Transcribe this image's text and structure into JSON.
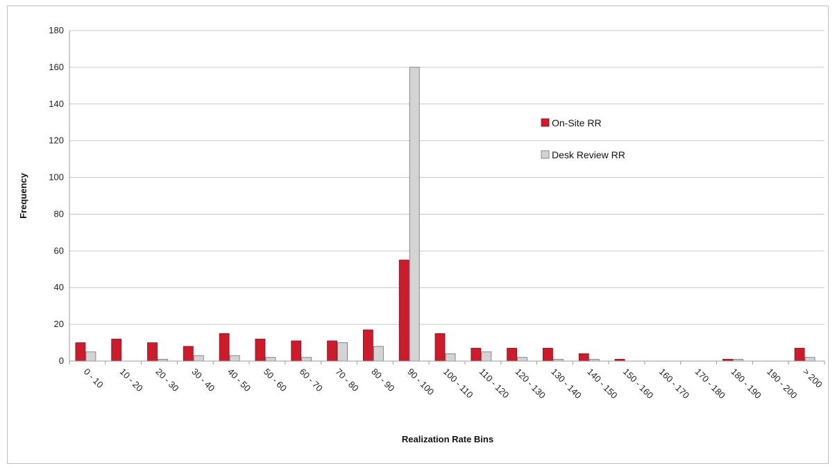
{
  "chart_data": {
    "type": "bar",
    "xlabel": "Realization Rate Bins",
    "ylabel": "Frequency",
    "ylim": [
      0,
      180
    ],
    "yticks": [
      0,
      20,
      40,
      60,
      80,
      100,
      120,
      140,
      160,
      180
    ],
    "grid": true,
    "legend_position": "right",
    "categories": [
      "0 - 10",
      "10 - 20",
      "20 - 30",
      "30 - 40",
      "40 - 50",
      "50 - 60",
      "60 - 70",
      "70 - 80",
      "80 - 90",
      "90 - 100",
      "100 - 110",
      "110 - 120",
      "120 - 130",
      "130 - 140",
      "140 - 150",
      "150 - 160",
      "160 - 170",
      "170 - 180",
      "180 - 190",
      "190 - 200",
      "> 200"
    ],
    "series": [
      {
        "name": "On-Site RR",
        "color": "#cc1b2b",
        "values": [
          10,
          12,
          10,
          8,
          15,
          12,
          11,
          11,
          17,
          55,
          15,
          7,
          7,
          7,
          4,
          1,
          0,
          0,
          1,
          0,
          7
        ]
      },
      {
        "name": "Desk Review RR",
        "color": "#d4d4d4",
        "values": [
          5,
          0,
          1,
          3,
          3,
          2,
          2,
          10,
          8,
          160,
          4,
          5,
          2,
          1,
          1,
          0,
          0,
          0,
          1,
          0,
          2
        ]
      }
    ]
  }
}
